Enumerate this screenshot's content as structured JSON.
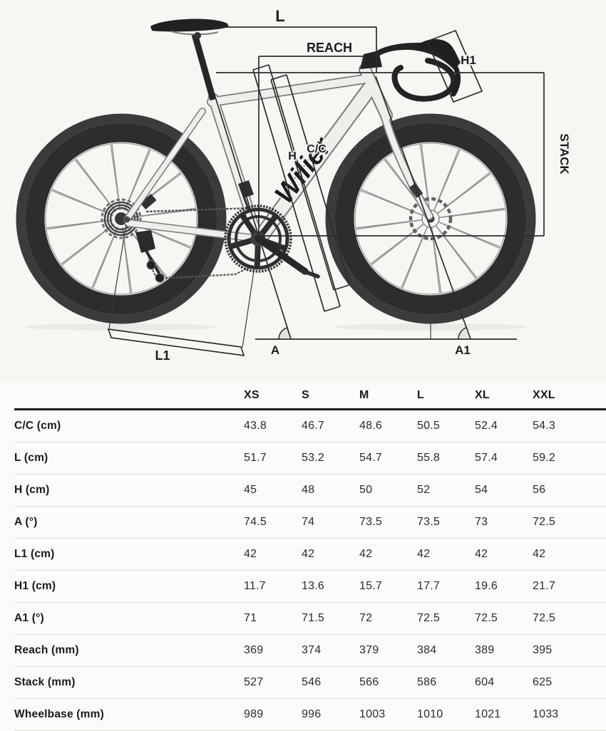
{
  "diagram": {
    "brand_logo": "Wilier",
    "labels": {
      "l": "L",
      "reach": "REACH",
      "h1": "H1",
      "h": "H",
      "cc": "C/C",
      "stack": "STACK",
      "l1": "L1",
      "a": "A",
      "a1": "A1"
    }
  },
  "geometry_table": {
    "size_headers": [
      "XS",
      "S",
      "M",
      "L",
      "XL",
      "XXL"
    ],
    "rows": [
      {
        "label": "C/C (cm)",
        "values": [
          "43.8",
          "46.7",
          "48.6",
          "50.5",
          "52.4",
          "54.3"
        ]
      },
      {
        "label": "L (cm)",
        "values": [
          "51.7",
          "53.2",
          "54.7",
          "55.8",
          "57.4",
          "59.2"
        ]
      },
      {
        "label": "H (cm)",
        "values": [
          "45",
          "48",
          "50",
          "52",
          "54",
          "56"
        ]
      },
      {
        "label": "A (°)",
        "values": [
          "74.5",
          "74",
          "73.5",
          "73.5",
          "73",
          "72.5"
        ]
      },
      {
        "label": "L1 (cm)",
        "values": [
          "42",
          "42",
          "42",
          "42",
          "42",
          "42"
        ]
      },
      {
        "label": "H1 (cm)",
        "values": [
          "11.7",
          "13.6",
          "15.7",
          "17.7",
          "19.6",
          "21.7"
        ]
      },
      {
        "label": "A1 (°)",
        "values": [
          "71",
          "71.5",
          "72",
          "72.5",
          "72.5",
          "72.5"
        ]
      },
      {
        "label": "Reach (mm)",
        "values": [
          "369",
          "374",
          "379",
          "384",
          "389",
          "395"
        ]
      },
      {
        "label": "Stack (mm)",
        "values": [
          "527",
          "546",
          "566",
          "586",
          "604",
          "625"
        ]
      },
      {
        "label": "Wheelbase (mm)",
        "values": [
          "989",
          "996",
          "1003",
          "1010",
          "1021",
          "1033"
        ]
      }
    ]
  }
}
